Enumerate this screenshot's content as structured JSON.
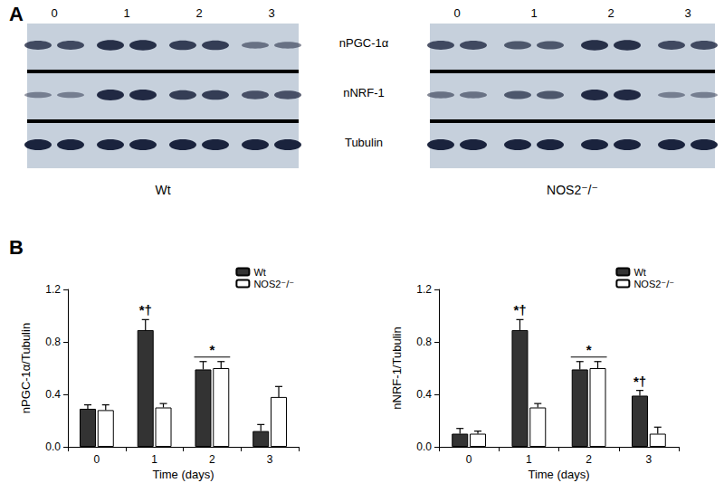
{
  "figure": {
    "panel_labels": [
      "A",
      "B"
    ],
    "blot_row_labels": [
      "nPGC-1α",
      "nNRF-1",
      "Tubulin"
    ],
    "blots": [
      {
        "title": "Wt",
        "lanes": [
          "0",
          "1",
          "2",
          "3"
        ],
        "bands": [
          [
            0.6,
            0.8,
            0.7,
            0.3
          ],
          [
            0.2,
            0.85,
            0.7,
            0.55
          ],
          [
            0.9,
            0.9,
            0.9,
            0.9
          ]
        ]
      },
      {
        "title": "NOS2⁻/⁻",
        "lanes": [
          "0",
          "1",
          "2",
          "3"
        ],
        "bands": [
          [
            0.6,
            0.5,
            0.8,
            0.6
          ],
          [
            0.3,
            0.5,
            0.85,
            0.2
          ],
          [
            0.9,
            0.9,
            0.9,
            0.9
          ]
        ]
      }
    ]
  },
  "chart_data": [
    {
      "type": "bar",
      "x_label": "Time (days)",
      "y_label": "nPGC-1α/Tubulin",
      "categories": [
        "0",
        "1",
        "2",
        "3"
      ],
      "series": [
        {
          "name": "Wt",
          "color": "#333333",
          "values": [
            0.29,
            0.89,
            0.59,
            0.12
          ],
          "errors": [
            0.03,
            0.08,
            0.06,
            0.05
          ]
        },
        {
          "name": "NOS2⁻/⁻",
          "color": "#ffffff",
          "values": [
            0.28,
            0.3,
            0.6,
            0.38
          ],
          "errors": [
            0.04,
            0.03,
            0.05,
            0.08
          ]
        }
      ],
      "ylim": [
        0,
        1.2
      ],
      "yticks": [
        {
          "value": 0,
          "label": "0.0"
        },
        0.4,
        0.8,
        1.2
      ],
      "legend": "upper right",
      "grid": false,
      "annotations": [
        {
          "text": "*†",
          "category": "1",
          "series": [
            "Wt"
          ]
        },
        {
          "text": "*",
          "category": "2",
          "series": [
            "Wt",
            "NOS2⁻/⁻"
          ]
        }
      ]
    },
    {
      "type": "bar",
      "x_label": "Time (days)",
      "y_label": "nNRF-1/Tubulin",
      "categories": [
        "0",
        "1",
        "2",
        "3"
      ],
      "series": [
        {
          "name": "Wt",
          "color": "#333333",
          "values": [
            0.1,
            0.89,
            0.59,
            0.39
          ],
          "errors": [
            0.04,
            0.08,
            0.06,
            0.04
          ]
        },
        {
          "name": "NOS2⁻/⁻",
          "color": "#ffffff",
          "values": [
            0.1,
            0.3,
            0.6,
            0.1
          ],
          "errors": [
            0.02,
            0.03,
            0.05,
            0.05
          ]
        }
      ],
      "ylim": [
        0,
        1.2
      ],
      "yticks": [
        {
          "value": 0,
          "label": "0.0"
        },
        0.4,
        0.8,
        1.2
      ],
      "legend": "upper right",
      "grid": false,
      "annotations": [
        {
          "text": "*†",
          "category": "1",
          "series": [
            "Wt"
          ]
        },
        {
          "text": "*",
          "category": "2",
          "series": [
            "Wt",
            "NOS2⁻/⁻"
          ]
        },
        {
          "text": "*†",
          "category": "3",
          "series": [
            "Wt"
          ]
        }
      ]
    }
  ]
}
